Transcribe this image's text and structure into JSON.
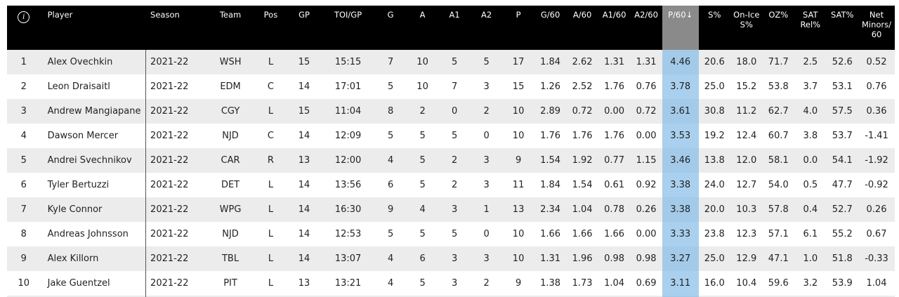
{
  "headers": {
    "info_icon": "i",
    "player": "Player",
    "season": "Season",
    "team": "Team",
    "pos": "Pos",
    "gp": "GP",
    "toi": "TOI/GP",
    "g": "G",
    "a": "A",
    "a1": "A1",
    "a2": "A2",
    "p": "P",
    "g60": "G/60",
    "a60": "A/60",
    "a160": "A1/60",
    "a260": "A2/60",
    "p60": "P/60↓",
    "spct": "S%",
    "onice": "On-Ice S%",
    "ozpct": "OZ%",
    "satrel": "SAT Rel%",
    "satpct": "SAT%",
    "netminors": "Net Minors/ 60"
  },
  "rows": [
    [
      "1",
      "Alex Ovechkin",
      "2021-22",
      "WSH",
      "L",
      "15",
      "15:15",
      "7",
      "10",
      "5",
      "5",
      "17",
      "1.84",
      "2.62",
      "1.31",
      "1.31",
      "4.46",
      "20.6",
      "18.0",
      "71.7",
      "2.5",
      "52.6",
      "0.52"
    ],
    [
      "2",
      "Leon Draisaitl",
      "2021-22",
      "EDM",
      "C",
      "14",
      "17:01",
      "5",
      "10",
      "7",
      "3",
      "15",
      "1.26",
      "2.52",
      "1.76",
      "0.76",
      "3.78",
      "25.0",
      "15.2",
      "53.8",
      "3.7",
      "53.1",
      "0.76"
    ],
    [
      "3",
      "Andrew Mangiapane",
      "2021-22",
      "CGY",
      "L",
      "15",
      "11:04",
      "8",
      "2",
      "0",
      "2",
      "10",
      "2.89",
      "0.72",
      "0.00",
      "0.72",
      "3.61",
      "30.8",
      "11.2",
      "62.7",
      "4.0",
      "57.5",
      "0.36"
    ],
    [
      "4",
      "Dawson Mercer",
      "2021-22",
      "NJD",
      "C",
      "14",
      "12:09",
      "5",
      "5",
      "5",
      "0",
      "10",
      "1.76",
      "1.76",
      "1.76",
      "0.00",
      "3.53",
      "19.2",
      "12.4",
      "60.7",
      "3.8",
      "53.7",
      "-1.41"
    ],
    [
      "5",
      "Andrei Svechnikov",
      "2021-22",
      "CAR",
      "R",
      "13",
      "12:00",
      "4",
      "5",
      "2",
      "3",
      "9",
      "1.54",
      "1.92",
      "0.77",
      "1.15",
      "3.46",
      "13.8",
      "12.0",
      "58.1",
      "0.0",
      "54.1",
      "-1.92"
    ],
    [
      "6",
      "Tyler Bertuzzi",
      "2021-22",
      "DET",
      "L",
      "14",
      "13:56",
      "6",
      "5",
      "2",
      "3",
      "11",
      "1.84",
      "1.54",
      "0.61",
      "0.92",
      "3.38",
      "24.0",
      "12.7",
      "54.0",
      "0.5",
      "47.7",
      "-0.92"
    ],
    [
      "7",
      "Kyle Connor",
      "2021-22",
      "WPG",
      "L",
      "14",
      "16:30",
      "9",
      "4",
      "3",
      "1",
      "13",
      "2.34",
      "1.04",
      "0.78",
      "0.26",
      "3.38",
      "20.0",
      "10.3",
      "57.8",
      "0.4",
      "52.7",
      "0.26"
    ],
    [
      "8",
      "Andreas Johnsson",
      "2021-22",
      "NJD",
      "L",
      "14",
      "12:53",
      "5",
      "5",
      "5",
      "0",
      "10",
      "1.66",
      "1.66",
      "1.66",
      "0.00",
      "3.33",
      "23.8",
      "12.3",
      "57.1",
      "6.1",
      "55.2",
      "0.67"
    ],
    [
      "9",
      "Alex Killorn",
      "2021-22",
      "TBL",
      "L",
      "14",
      "13:07",
      "4",
      "6",
      "3",
      "3",
      "10",
      "1.31",
      "1.96",
      "0.98",
      "0.98",
      "3.27",
      "25.0",
      "12.9",
      "47.1",
      "1.0",
      "51.8",
      "-0.33"
    ],
    [
      "10",
      "Jake Guentzel",
      "2021-22",
      "PIT",
      "L",
      "13",
      "13:21",
      "4",
      "5",
      "3",
      "2",
      "9",
      "1.38",
      "1.73",
      "1.04",
      "0.69",
      "3.11",
      "16.0",
      "10.4",
      "59.6",
      "3.2",
      "53.9",
      "1.04"
    ]
  ]
}
